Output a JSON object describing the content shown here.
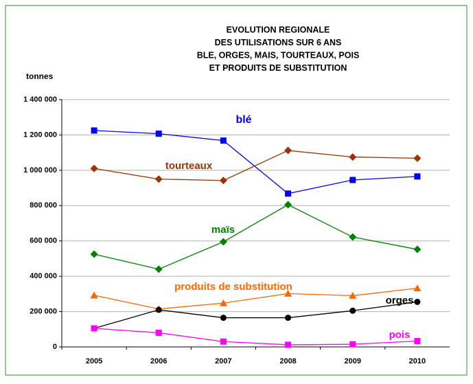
{
  "chart_data": {
    "type": "line",
    "title": [
      "EVOLUTION REGIONALE",
      "DES UTILISATIONS SUR 6 ANS",
      "BLE, ORGES, MAIS, TOURTEAUX, POIS",
      "ET PRODUITS DE SUBSTITUTION"
    ],
    "y_label": "tonnes",
    "categories": [
      "2005",
      "2006",
      "2007",
      "2008",
      "2009",
      "2010"
    ],
    "series": [
      {
        "name": "blé",
        "color": "#0000ff",
        "marker": "square",
        "values": [
          1225000,
          1207000,
          1168000,
          868000,
          945000,
          965000
        ]
      },
      {
        "name": "tourteaux",
        "color": "#993300",
        "marker": "diamond",
        "values": [
          1010000,
          950000,
          942000,
          1112000,
          1075000,
          1068000
        ]
      },
      {
        "name": "maïs",
        "color": "#008000",
        "marker": "diamond",
        "values": [
          525000,
          440000,
          595000,
          805000,
          622000,
          552000
        ]
      },
      {
        "name": "produits de substitution",
        "color": "#ff6600",
        "marker": "triangle",
        "values": [
          292000,
          215000,
          248000,
          302000,
          290000,
          332000
        ]
      },
      {
        "name": "orges",
        "color": "#000000",
        "marker": "circle",
        "values": [
          105000,
          210000,
          165000,
          165000,
          205000,
          255000
        ]
      },
      {
        "name": "pois",
        "color": "#ff00ff",
        "marker": "square",
        "values": [
          105000,
          80000,
          30000,
          12000,
          15000,
          33000
        ]
      }
    ],
    "ylim": [
      0,
      1400000
    ],
    "yticks": [
      0,
      {
        "value": 200000,
        "label": "200 000"
      },
      {
        "value": 400000,
        "label": "400 000"
      },
      {
        "value": 600000,
        "label": "600 000"
      },
      {
        "value": 800000,
        "label": "800 000"
      },
      {
        "value": 1000000,
        "label": "1 000 000"
      },
      {
        "value": 1200000,
        "label": "1 200 000"
      },
      {
        "value": 1400000,
        "label": "1 400 000"
      }
    ],
    "grid": true
  }
}
